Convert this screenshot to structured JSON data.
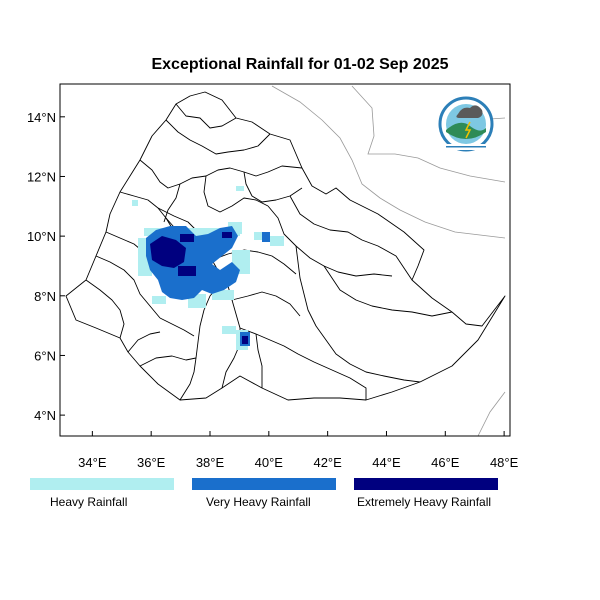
{
  "title": "Exceptional Rainfall for 01-02 Sep 2025",
  "axes": {
    "x_ticks": [
      {
        "value": 34,
        "label": "34°E"
      },
      {
        "value": 36,
        "label": "36°E"
      },
      {
        "value": 38,
        "label": "38°E"
      },
      {
        "value": 40,
        "label": "40°E"
      },
      {
        "value": 42,
        "label": "42°E"
      },
      {
        "value": 44,
        "label": "44°E"
      },
      {
        "value": 46,
        "label": "46°E"
      },
      {
        "value": 48,
        "label": "48°E"
      }
    ],
    "y_ticks": [
      {
        "value": 14,
        "label": "14°N"
      },
      {
        "value": 12,
        "label": "12°N"
      },
      {
        "value": 10,
        "label": "10°N"
      },
      {
        "value": 8,
        "label": "8°N"
      },
      {
        "value": 6,
        "label": "6°N"
      },
      {
        "value": 4,
        "label": "4°N"
      }
    ],
    "lon_range": [
      32.9,
      48.2
    ],
    "lat_range": [
      3.3,
      15.1
    ]
  },
  "legend": [
    {
      "label": "Heavy Rainfall",
      "color": "#b0eef0"
    },
    {
      "label": "Very Heavy Rainfall",
      "color": "#1a6fcc"
    },
    {
      "label": "Extremely Heavy Rainfall",
      "color": "#00007f"
    }
  ],
  "logo": {
    "icon": "meteorology-agency-logo"
  }
}
